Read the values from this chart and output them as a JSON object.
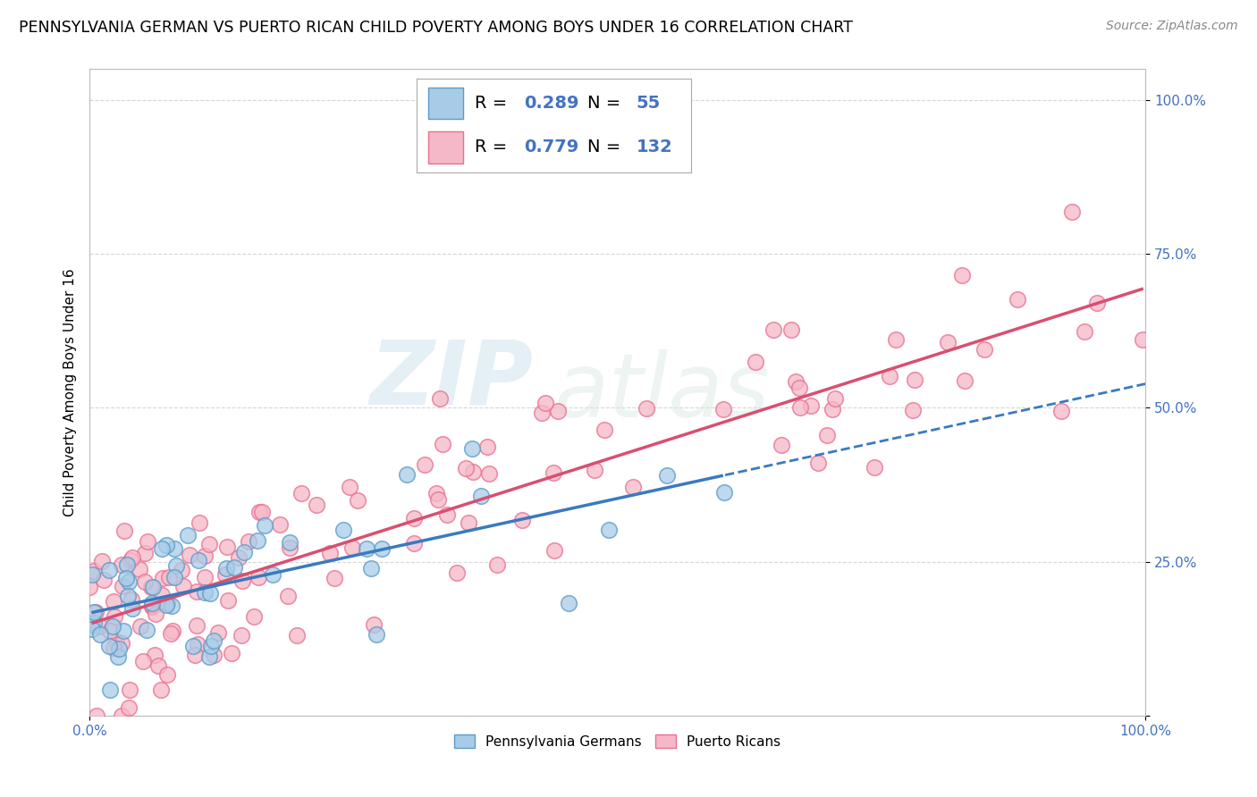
{
  "title": "PENNSYLVANIA GERMAN VS PUERTO RICAN CHILD POVERTY AMONG BOYS UNDER 16 CORRELATION CHART",
  "source": "Source: ZipAtlas.com",
  "ylabel": "Child Poverty Among Boys Under 16",
  "watermark_zip": "ZIP",
  "watermark_atlas": "atlas",
  "blue_R": 0.289,
  "blue_N": 55,
  "pink_R": 0.779,
  "pink_N": 132,
  "blue_scatter_face": "#a8cce8",
  "blue_scatter_edge": "#5b9bc8",
  "pink_scatter_face": "#f5b8c8",
  "pink_scatter_edge": "#e87090",
  "blue_line_color": "#3a7abf",
  "pink_line_color": "#d94f70",
  "background_color": "#ffffff",
  "grid_color": "#cccccc",
  "title_fontsize": 12.5,
  "axis_label_fontsize": 11,
  "tick_label_fontsize": 11,
  "legend_fontsize": 14,
  "source_fontsize": 10,
  "tick_color": "#4472c4",
  "seed": 7
}
